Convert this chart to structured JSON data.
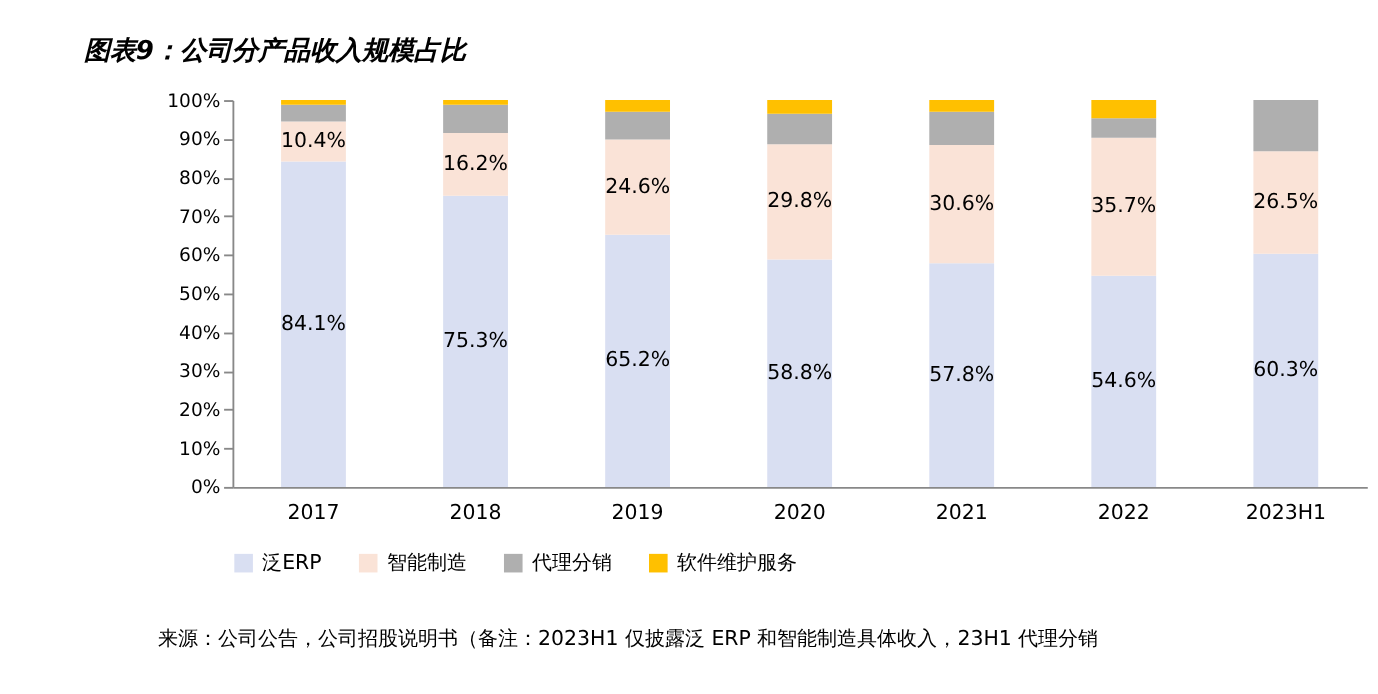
{
  "chart_data": {
    "type": "bar",
    "stacked": true,
    "title": "图表9：公司分产品收入规模占比",
    "categories": [
      "2017",
      "2018",
      "2019",
      "2020",
      "2021",
      "2022",
      "2023H1"
    ],
    "series": [
      {
        "name": "泛ERP",
        "color": "#d9dff2",
        "values": [
          84.1,
          75.3,
          65.2,
          58.8,
          57.8,
          54.6,
          60.3
        ],
        "value_labels": [
          "84.1%",
          "75.3%",
          "65.2%",
          "58.8%",
          "57.8%",
          "54.6%",
          "60.3%"
        ]
      },
      {
        "name": "智能制造",
        "color": "#fae3d7",
        "values": [
          10.4,
          16.2,
          24.6,
          29.8,
          30.6,
          35.7,
          26.5
        ],
        "value_labels": [
          "10.4%",
          "16.2%",
          "24.6%",
          "29.8%",
          "30.6%",
          "35.7%",
          "26.5%"
        ]
      },
      {
        "name": "代理分销",
        "color": "#afafaf",
        "values": [
          4.3,
          7.3,
          7.2,
          7.9,
          8.6,
          5.0,
          13.2
        ]
      },
      {
        "name": "软件维护服务",
        "color": "#ffc000",
        "values": [
          1.2,
          1.2,
          3.0,
          3.5,
          3.0,
          4.7,
          null
        ]
      }
    ],
    "ylim": [
      0,
      100
    ],
    "yticks": [
      {
        "value": 0,
        "label": "0%"
      },
      {
        "value": 10,
        "label": "10%"
      },
      {
        "value": 20,
        "label": "20%"
      },
      {
        "value": 30,
        "label": "30%"
      },
      {
        "value": 40,
        "label": "40%"
      },
      {
        "value": 50,
        "label": "50%"
      },
      {
        "value": 60,
        "label": "60%"
      },
      {
        "value": 70,
        "label": "70%"
      },
      {
        "value": 80,
        "label": "80%"
      },
      {
        "value": 90,
        "label": "90%"
      },
      {
        "value": 100,
        "label": "100%"
      }
    ],
    "grid": false,
    "legend": "bottom",
    "annotations": [
      "来源：公司公告，公司招股说明书（备注：2023H1 仅披露泛 ERP 和智能制造具体收入，23H1 代理分销"
    ]
  }
}
